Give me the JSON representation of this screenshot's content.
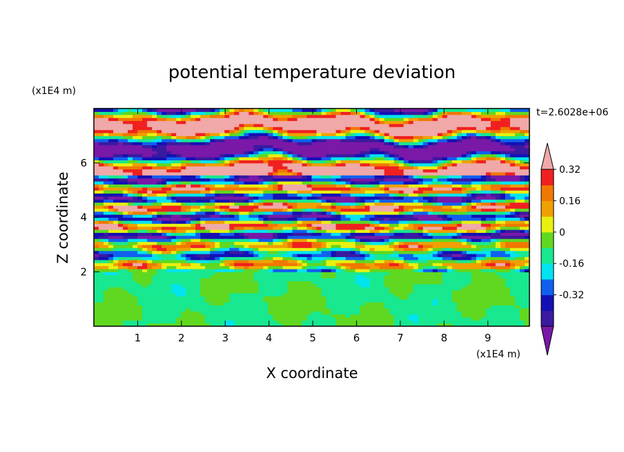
{
  "chart_data": {
    "type": "heatmap",
    "title": "potential temperature deviation",
    "xlabel": "X coordinate",
    "ylabel": "Z coordinate",
    "x_unit": "(x1E4 m)",
    "y_unit": "(x1E4 m)",
    "time_label": "t=2.6028e+06",
    "xlim": [
      0,
      9.95
    ],
    "ylim": [
      0,
      8
    ],
    "x_ticks": [
      "1",
      "2",
      "3",
      "4",
      "5",
      "6",
      "7",
      "8",
      "9"
    ],
    "y_ticks": [
      "2",
      "4",
      "6"
    ],
    "colorbar": {
      "levels": [
        -0.48,
        -0.4,
        -0.32,
        -0.24,
        -0.16,
        -0.08,
        0,
        0.08,
        0.16,
        0.24,
        0.32,
        0.4
      ],
      "colors": [
        "#7a18a8",
        "#3a1aa0",
        "#1410b4",
        "#1060f0",
        "#00e4f0",
        "#18e890",
        "#60d820",
        "#e8f010",
        "#f0a000",
        "#f07800",
        "#f02020",
        "#f0a8a8"
      ],
      "tick_labels": [
        "0.32",
        "0.16",
        "0",
        "-0.16",
        "-0.32"
      ],
      "extend": "both"
    },
    "layers": [
      {
        "z_range": [
          0,
          2
        ],
        "description_value": 0.0,
        "dominant_color": "#18e890"
      },
      {
        "z_range": [
          2,
          5.5
        ],
        "banding": "alternating positive/negative",
        "value_range": [
          -0.4,
          0.4
        ]
      },
      {
        "z_range": [
          5.5,
          8
        ],
        "banding": "large alternating bands",
        "value_range": [
          -0.48,
          0.48
        ]
      }
    ]
  }
}
